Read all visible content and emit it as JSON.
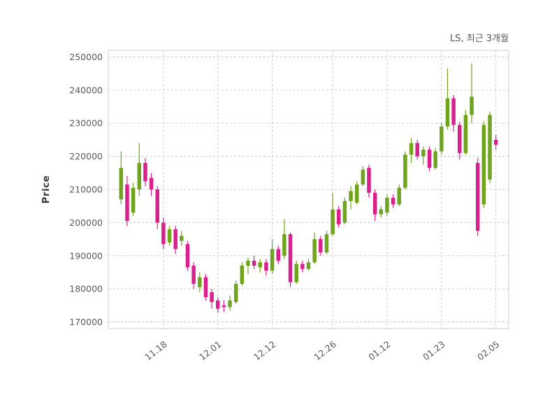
{
  "title": "LS, 최근 3개월",
  "ylabel": "Price",
  "colors": {
    "up": "#70a41f",
    "down": "#d9218e",
    "grid": "#cccccc",
    "spine": "#cfcfcf",
    "tick_text": "#595959",
    "title_text": "#595959",
    "background": "#ffffff"
  },
  "chart_data": {
    "type": "candlestick",
    "title": "LS, 최근 3개월",
    "ylabel": "Price",
    "grid": true,
    "legend": "none",
    "ylim": [
      168000,
      252000
    ],
    "yticks": [
      170000,
      180000,
      190000,
      200000,
      210000,
      220000,
      230000,
      240000,
      250000
    ],
    "xticks": [
      {
        "index": 7,
        "label": "11.18"
      },
      {
        "index": 16,
        "label": "12.01"
      },
      {
        "index": 25,
        "label": "12.12"
      },
      {
        "index": 35,
        "label": "12.26"
      },
      {
        "index": 44,
        "label": "01.12"
      },
      {
        "index": 53,
        "label": "01.23"
      },
      {
        "index": 62,
        "label": "02.05"
      }
    ],
    "ohlc_format": [
      "open",
      "high",
      "low",
      "close"
    ],
    "ohlc": [
      [
        207000,
        221500,
        205500,
        216500
      ],
      [
        211500,
        214000,
        199000,
        200500
      ],
      [
        203000,
        212000,
        202000,
        210500
      ],
      [
        210000,
        224000,
        208000,
        218000
      ],
      [
        218000,
        219500,
        211000,
        212500
      ],
      [
        213500,
        215000,
        208000,
        210000
      ],
      [
        210000,
        211000,
        198000,
        200000
      ],
      [
        200000,
        201500,
        192000,
        193500
      ],
      [
        194000,
        199000,
        193000,
        198000
      ],
      [
        198000,
        199000,
        190500,
        192000
      ],
      [
        194500,
        197500,
        193000,
        196000
      ],
      [
        193500,
        194500,
        185500,
        186500
      ],
      [
        187000,
        188000,
        180000,
        181500
      ],
      [
        180500,
        185000,
        179000,
        183500
      ],
      [
        183500,
        184500,
        176500,
        177500
      ],
      [
        179000,
        180000,
        174000,
        176000
      ],
      [
        176500,
        177500,
        172800,
        174000
      ],
      [
        175000,
        176500,
        173000,
        174500
      ],
      [
        174500,
        178000,
        173500,
        176500
      ],
      [
        176000,
        182500,
        175500,
        181500
      ],
      [
        181500,
        188000,
        181000,
        187000
      ],
      [
        187000,
        189500,
        184500,
        188500
      ],
      [
        188500,
        190000,
        186000,
        187000
      ],
      [
        186500,
        189000,
        185000,
        188000
      ],
      [
        188000,
        189000,
        184000,
        185500
      ],
      [
        185500,
        195000,
        184500,
        192000
      ],
      [
        192000,
        193000,
        187500,
        188500
      ],
      [
        190000,
        201000,
        189000,
        196500
      ],
      [
        196500,
        197000,
        180500,
        182000
      ],
      [
        182000,
        188500,
        181500,
        187500
      ],
      [
        187500,
        188500,
        185000,
        186000
      ],
      [
        186000,
        189000,
        185500,
        188000
      ],
      [
        188000,
        197000,
        187500,
        195000
      ],
      [
        195000,
        196000,
        190000,
        191000
      ],
      [
        191000,
        197500,
        190500,
        196500
      ],
      [
        196500,
        209000,
        196000,
        204000
      ],
      [
        204000,
        205000,
        198500,
        199500
      ],
      [
        200000,
        207500,
        199500,
        206500
      ],
      [
        206500,
        211000,
        204000,
        209500
      ],
      [
        206000,
        212500,
        205500,
        211500
      ],
      [
        211500,
        217000,
        211000,
        216000
      ],
      [
        216500,
        217500,
        207500,
        209000
      ],
      [
        209000,
        210000,
        200500,
        202500
      ],
      [
        202500,
        205000,
        201500,
        204000
      ],
      [
        203000,
        208500,
        202000,
        207500
      ],
      [
        207500,
        208500,
        204500,
        205500
      ],
      [
        205500,
        211500,
        205000,
        210500
      ],
      [
        210500,
        221500,
        210000,
        220500
      ],
      [
        220500,
        225500,
        218000,
        224000
      ],
      [
        224000,
        225000,
        219000,
        220000
      ],
      [
        220000,
        223000,
        217500,
        222000
      ],
      [
        222000,
        223000,
        215500,
        216500
      ],
      [
        216500,
        222500,
        216000,
        221500
      ],
      [
        221500,
        230000,
        220500,
        229000
      ],
      [
        229000,
        246500,
        228000,
        237500
      ],
      [
        237500,
        238500,
        227500,
        229500
      ],
      [
        229500,
        230500,
        219000,
        221000
      ],
      [
        221000,
        234000,
        220500,
        232500
      ],
      [
        232500,
        248000,
        230000,
        238000
      ],
      [
        218000,
        219500,
        196000,
        197500
      ],
      [
        205500,
        230500,
        204500,
        229500
      ],
      [
        213000,
        233500,
        212000,
        232500
      ],
      [
        225000,
        226500,
        222000,
        223500
      ]
    ]
  }
}
